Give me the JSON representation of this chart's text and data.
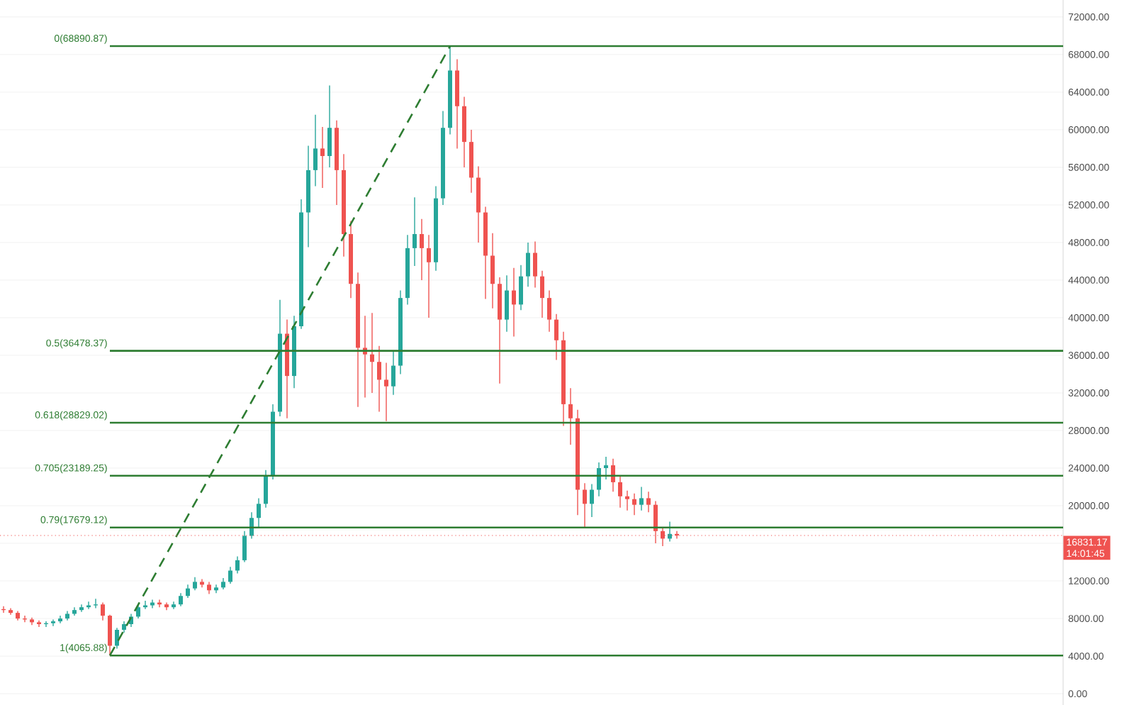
{
  "chart_data": {
    "type": "candlestick",
    "categories": [
      null,
      null,
      null,
      null,
      null,
      null,
      null,
      null,
      null,
      null,
      null,
      null,
      null,
      null,
      null,
      null,
      null,
      null,
      null,
      null,
      null,
      null,
      null,
      null,
      null,
      null,
      null,
      null,
      null,
      null,
      null,
      null,
      null,
      null,
      null,
      null,
      null,
      null,
      null,
      null,
      null,
      null,
      null,
      null,
      null,
      null,
      null,
      null,
      null,
      null,
      null,
      null,
      null,
      null,
      null,
      null,
      null,
      null,
      null,
      null,
      null,
      null,
      null,
      null,
      null,
      null,
      null,
      null,
      null,
      null,
      null,
      null,
      null,
      null,
      null,
      null,
      null,
      null,
      null,
      null,
      null,
      null,
      null,
      null,
      null,
      null,
      null,
      null,
      null,
      null,
      null,
      null,
      null,
      null,
      null,
      null,
      null,
      null,
      null,
      null,
      null,
      null,
      null,
      null,
      null,
      null,
      null,
      null,
      null,
      null,
      null,
      null,
      null,
      null,
      null,
      null,
      null,
      null,
      null,
      null,
      null,
      null,
      null,
      null,
      null,
      null,
      null,
      null,
      null,
      null,
      null,
      null,
      null,
      null,
      null,
      null,
      null,
      null,
      null,
      null,
      null,
      null,
      null,
      null,
      null,
      null,
      null,
      null,
      null,
      null
    ],
    "ohlc": [
      [
        9000,
        9300,
        8600,
        8900
      ],
      [
        8900,
        9100,
        8400,
        8600
      ],
      [
        8600,
        8800,
        7800,
        8000
      ],
      [
        8000,
        8300,
        7600,
        7900
      ],
      [
        7900,
        8100,
        7300,
        7600
      ],
      [
        7600,
        7800,
        7100,
        7400
      ],
      [
        7400,
        7700,
        7100,
        7500
      ],
      [
        7500,
        7900,
        7200,
        7700
      ],
      [
        7700,
        8300,
        7500,
        8000
      ],
      [
        8000,
        8800,
        7800,
        8500
      ],
      [
        8500,
        9200,
        8300,
        8900
      ],
      [
        8900,
        9500,
        8700,
        9200
      ],
      [
        9200,
        9800,
        9000,
        9400
      ],
      [
        9400,
        10100,
        9100,
        9500
      ],
      [
        9500,
        9700,
        7800,
        8300
      ],
      [
        8300,
        8400,
        4065.88,
        5100
      ],
      [
        5100,
        7000,
        4800,
        6800
      ],
      [
        6800,
        7700,
        6500,
        7400
      ],
      [
        7400,
        8500,
        7100,
        8200
      ],
      [
        8200,
        9500,
        8000,
        9200
      ],
      [
        9200,
        9900,
        9000,
        9400
      ],
      [
        9400,
        10000,
        9100,
        9700
      ],
      [
        9700,
        10000,
        9200,
        9500
      ],
      [
        9500,
        9700,
        8900,
        9200
      ],
      [
        9200,
        9800,
        9000,
        9500
      ],
      [
        9500,
        10700,
        9300,
        10400
      ],
      [
        10400,
        11600,
        10200,
        11200
      ],
      [
        11200,
        12400,
        11000,
        11900
      ],
      [
        11900,
        12200,
        11300,
        11600
      ],
      [
        11600,
        11900,
        10600,
        11000
      ],
      [
        11000,
        11600,
        10700,
        11300
      ],
      [
        11300,
        12300,
        11100,
        11900
      ],
      [
        11900,
        13500,
        11700,
        13100
      ],
      [
        13100,
        14600,
        12800,
        14200
      ],
      [
        14200,
        17300,
        14000,
        16800
      ],
      [
        16800,
        19300,
        16500,
        18700
      ],
      [
        18700,
        20800,
        17700,
        20200
      ],
      [
        20200,
        23800,
        19800,
        23200
      ],
      [
        23200,
        30800,
        22800,
        30000
      ],
      [
        30000,
        41900,
        29500,
        38300
      ],
      [
        38300,
        39800,
        29300,
        33800
      ],
      [
        33800,
        40200,
        32500,
        39100
      ],
      [
        39100,
        52600,
        38800,
        51200
      ],
      [
        51200,
        58300,
        47500,
        55700
      ],
      [
        55700,
        61600,
        54000,
        58000
      ],
      [
        58000,
        60300,
        53800,
        57200
      ],
      [
        57200,
        64700,
        56000,
        60200
      ],
      [
        60200,
        61000,
        52000,
        55700
      ],
      [
        55700,
        57400,
        46500,
        48900
      ],
      [
        48900,
        50300,
        42100,
        43600
      ],
      [
        43600,
        44800,
        30500,
        36800
      ],
      [
        36800,
        40200,
        31500,
        36100
      ],
      [
        36100,
        40500,
        32000,
        35300
      ],
      [
        35300,
        37000,
        30000,
        33400
      ],
      [
        33400,
        35200,
        29000,
        32700
      ],
      [
        32700,
        36500,
        31800,
        34900
      ],
      [
        34900,
        42900,
        34000,
        42100
      ],
      [
        42100,
        48800,
        41400,
        47400
      ],
      [
        47400,
        52800,
        45500,
        48900
      ],
      [
        48900,
        50500,
        44000,
        47400
      ],
      [
        47400,
        48800,
        40000,
        45900
      ],
      [
        45900,
        54000,
        45000,
        52700
      ],
      [
        52700,
        62000,
        52000,
        60200
      ],
      [
        60200,
        68890.87,
        59500,
        66300
      ],
      [
        66300,
        67500,
        58000,
        62500
      ],
      [
        62500,
        63500,
        56000,
        58700
      ],
      [
        58700,
        60000,
        53300,
        54900
      ],
      [
        54900,
        56100,
        48000,
        51200
      ],
      [
        51200,
        51800,
        42000,
        46600
      ],
      [
        46600,
        49000,
        41000,
        43600
      ],
      [
        43600,
        44300,
        33000,
        39800
      ],
      [
        39800,
        44500,
        38500,
        42900
      ],
      [
        42900,
        45300,
        38000,
        41400
      ],
      [
        41400,
        45600,
        40800,
        44400
      ],
      [
        44400,
        48000,
        43300,
        46900
      ],
      [
        46900,
        48100,
        43200,
        44400
      ],
      [
        44400,
        45000,
        40000,
        42100
      ],
      [
        42100,
        42900,
        38500,
        39800
      ],
      [
        39800,
        40400,
        35500,
        37600
      ],
      [
        37600,
        38500,
        28500,
        30800
      ],
      [
        30800,
        32500,
        26500,
        29300
      ],
      [
        29300,
        30200,
        19000,
        21700
      ],
      [
        21700,
        22400,
        17600,
        20200
      ],
      [
        20200,
        22300,
        18800,
        21700
      ],
      [
        21700,
        24600,
        21000,
        24000
      ],
      [
        24000,
        25200,
        22800,
        24300
      ],
      [
        24300,
        25000,
        21500,
        22500
      ],
      [
        22500,
        23100,
        19800,
        21000
      ],
      [
        21000,
        21600,
        19500,
        20700
      ],
      [
        20700,
        21300,
        19000,
        20100
      ],
      [
        20100,
        22000,
        19500,
        20800
      ],
      [
        20800,
        21500,
        19300,
        20100
      ],
      [
        20100,
        20500,
        16000,
        17300
      ],
      [
        17300,
        17700,
        15700,
        16500
      ],
      [
        16500,
        18300,
        16200,
        17000
      ],
      [
        17000,
        17300,
        16500,
        16831.17
      ],
      null,
      null,
      null,
      null,
      null,
      null,
      null,
      null,
      null,
      null,
      null,
      null,
      null,
      null,
      null,
      null,
      null,
      null,
      null,
      null,
      null,
      null,
      null,
      null,
      null,
      null,
      null,
      null,
      null,
      null,
      null,
      null,
      null,
      null,
      null,
      null,
      null,
      null,
      null,
      null,
      null,
      null,
      null,
      null,
      null,
      null,
      null,
      null,
      null,
      null,
      null,
      null,
      null,
      null
    ],
    "colors": [
      "#ef5350",
      "#ef5350",
      "#ef5350",
      "#ef5350",
      "#ef5350",
      "#ef5350",
      "#26a69a",
      "#26a69a",
      "#26a69a",
      "#26a69a",
      "#26a69a",
      "#26a69a",
      "#26a69a",
      "#26a69a",
      "#ef5350",
      "#ef5350",
      "#26a69a",
      "#26a69a",
      "#26a69a",
      "#26a69a",
      "#26a69a",
      "#26a69a",
      "#ef5350",
      "#ef5350",
      "#26a69a",
      "#26a69a",
      "#26a69a",
      "#26a69a",
      "#ef5350",
      "#ef5350",
      "#26a69a",
      "#26a69a",
      "#26a69a",
      "#26a69a",
      "#26a69a",
      "#26a69a",
      "#26a69a",
      "#26a69a",
      "#26a69a",
      "#26a69a",
      "#ef5350",
      "#26a69a",
      "#26a69a",
      "#26a69a",
      "#26a69a",
      "#ef5350",
      "#26a69a",
      "#ef5350",
      "#ef5350",
      "#ef5350",
      "#ef5350",
      "#ef5350",
      "#ef5350",
      "#ef5350",
      "#ef5350",
      "#26a69a",
      "#26a69a",
      "#26a69a",
      "#26a69a",
      "#ef5350",
      "#ef5350",
      "#26a69a",
      "#26a69a",
      "#26a69a",
      "#ef5350",
      "#ef5350",
      "#ef5350",
      "#ef5350",
      "#ef5350",
      "#ef5350",
      "#ef5350",
      "#26a69a",
      "#ef5350",
      "#26a69a",
      "#26a69a",
      "#ef5350",
      "#ef5350",
      "#ef5350",
      "#ef5350",
      "#ef5350",
      "#ef5350",
      "#ef5350",
      "#ef5350",
      "#26a69a",
      "#26a69a",
      "#26a69a",
      "#ef5350",
      "#ef5350",
      "#ef5350",
      "#ef5350",
      "#26a69a",
      "#ef5350",
      "#ef5350",
      "#ef5350",
      "#26a69a",
      "#ef5350",
      null,
      null,
      null,
      null,
      null,
      null,
      null,
      null,
      null,
      null,
      null,
      null,
      null,
      null,
      null,
      null,
      null,
      null,
      null,
      null,
      null,
      null,
      null,
      null,
      null,
      null,
      null,
      null,
      null,
      null,
      null,
      null,
      null,
      null,
      null,
      null,
      null,
      null,
      null,
      null,
      null,
      null,
      null,
      null,
      null,
      null,
      null,
      null,
      null,
      null,
      null,
      null,
      null,
      null
    ],
    "series": [
      {
        "type": "line",
        "line_style": "dashed",
        "color": "#2e7d32",
        "values": [
          null,
          null,
          null,
          null,
          null,
          null,
          null,
          null,
          null,
          null,
          null,
          null,
          null,
          null,
          null,
          4065.88,
          null,
          null,
          null,
          null,
          null,
          null,
          null,
          null,
          null,
          null,
          null,
          null,
          null,
          null,
          null,
          null,
          null,
          null,
          null,
          null,
          null,
          null,
          null,
          null,
          null,
          null,
          null,
          null,
          null,
          null,
          null,
          null,
          null,
          null,
          null,
          null,
          null,
          null,
          null,
          null,
          null,
          null,
          null,
          null,
          null,
          null,
          null,
          68890.87,
          null,
          null,
          null,
          null,
          null,
          null,
          null,
          null,
          null,
          null,
          null,
          null,
          null,
          null,
          null,
          null,
          null,
          null,
          null,
          null,
          null,
          null,
          null,
          null,
          null,
          null,
          null,
          null,
          null,
          null,
          null,
          null,
          null,
          null,
          null,
          null,
          null,
          null,
          null,
          null,
          null,
          null,
          null,
          null,
          null,
          null,
          null,
          null,
          null,
          null,
          null,
          null,
          null,
          null,
          null,
          null,
          null,
          null,
          null,
          null,
          null,
          null,
          null,
          null,
          null,
          null,
          null,
          null,
          null,
          null,
          null,
          null,
          null,
          null,
          null,
          null,
          null,
          null,
          null,
          null,
          null,
          null,
          null,
          null,
          null,
          null
        ]
      }
    ],
    "ylim": [
      -1200,
      73800
    ],
    "yticks": [
      {
        "value": 0,
        "label": "0.00"
      },
      {
        "value": 4000,
        "label": "4000.00"
      },
      {
        "value": 8000,
        "label": "8000.00"
      },
      {
        "value": 12000,
        "label": "12000.00"
      },
      {
        "value": 16000,
        "label": null
      },
      {
        "value": 20000,
        "label": "20000.00"
      },
      {
        "value": 24000,
        "label": "24000.00"
      },
      {
        "value": 28000,
        "label": "28000.00"
      },
      {
        "value": 32000,
        "label": "32000.00"
      },
      {
        "value": 36000,
        "label": "36000.00"
      },
      {
        "value": 40000,
        "label": "40000.00"
      },
      {
        "value": 44000,
        "label": "44000.00"
      },
      {
        "value": 48000,
        "label": "48000.00"
      },
      {
        "value": 52000,
        "label": "52000.00"
      },
      {
        "value": 56000,
        "label": "56000.00"
      },
      {
        "value": 60000,
        "label": "60000.00"
      },
      {
        "value": 64000,
        "label": "64000.00"
      },
      {
        "value": 68000,
        "label": "68000.00"
      },
      {
        "value": 72000,
        "label": "72000.00"
      }
    ],
    "grid": "y",
    "ref_lines": [
      {
        "axis": "y",
        "value": 68890.87,
        "label": "0(68890.87)",
        "color": "#2e7d32"
      },
      {
        "axis": "y",
        "value": 36478.37,
        "label": "0.5(36478.37)",
        "color": "#2e7d32"
      },
      {
        "axis": "y",
        "value": 28829.02,
        "label": "0.618(28829.02)",
        "color": "#2e7d32"
      },
      {
        "axis": "y",
        "value": 23189.25,
        "label": "0.705(23189.25)",
        "color": "#2e7d32"
      },
      {
        "axis": "y",
        "value": 17679.12,
        "label": "0.79(17679.12)",
        "color": "#2e7d32"
      },
      {
        "axis": "y",
        "value": 4065.88,
        "label": "1(4065.88)",
        "color": "#2e7d32"
      },
      {
        "axis": "y",
        "value": 16831.17,
        "label": "16831.17",
        "color": "#ef5350",
        "line_style": "dotted"
      }
    ],
    "annotations": [
      "14:01:45"
    ]
  }
}
